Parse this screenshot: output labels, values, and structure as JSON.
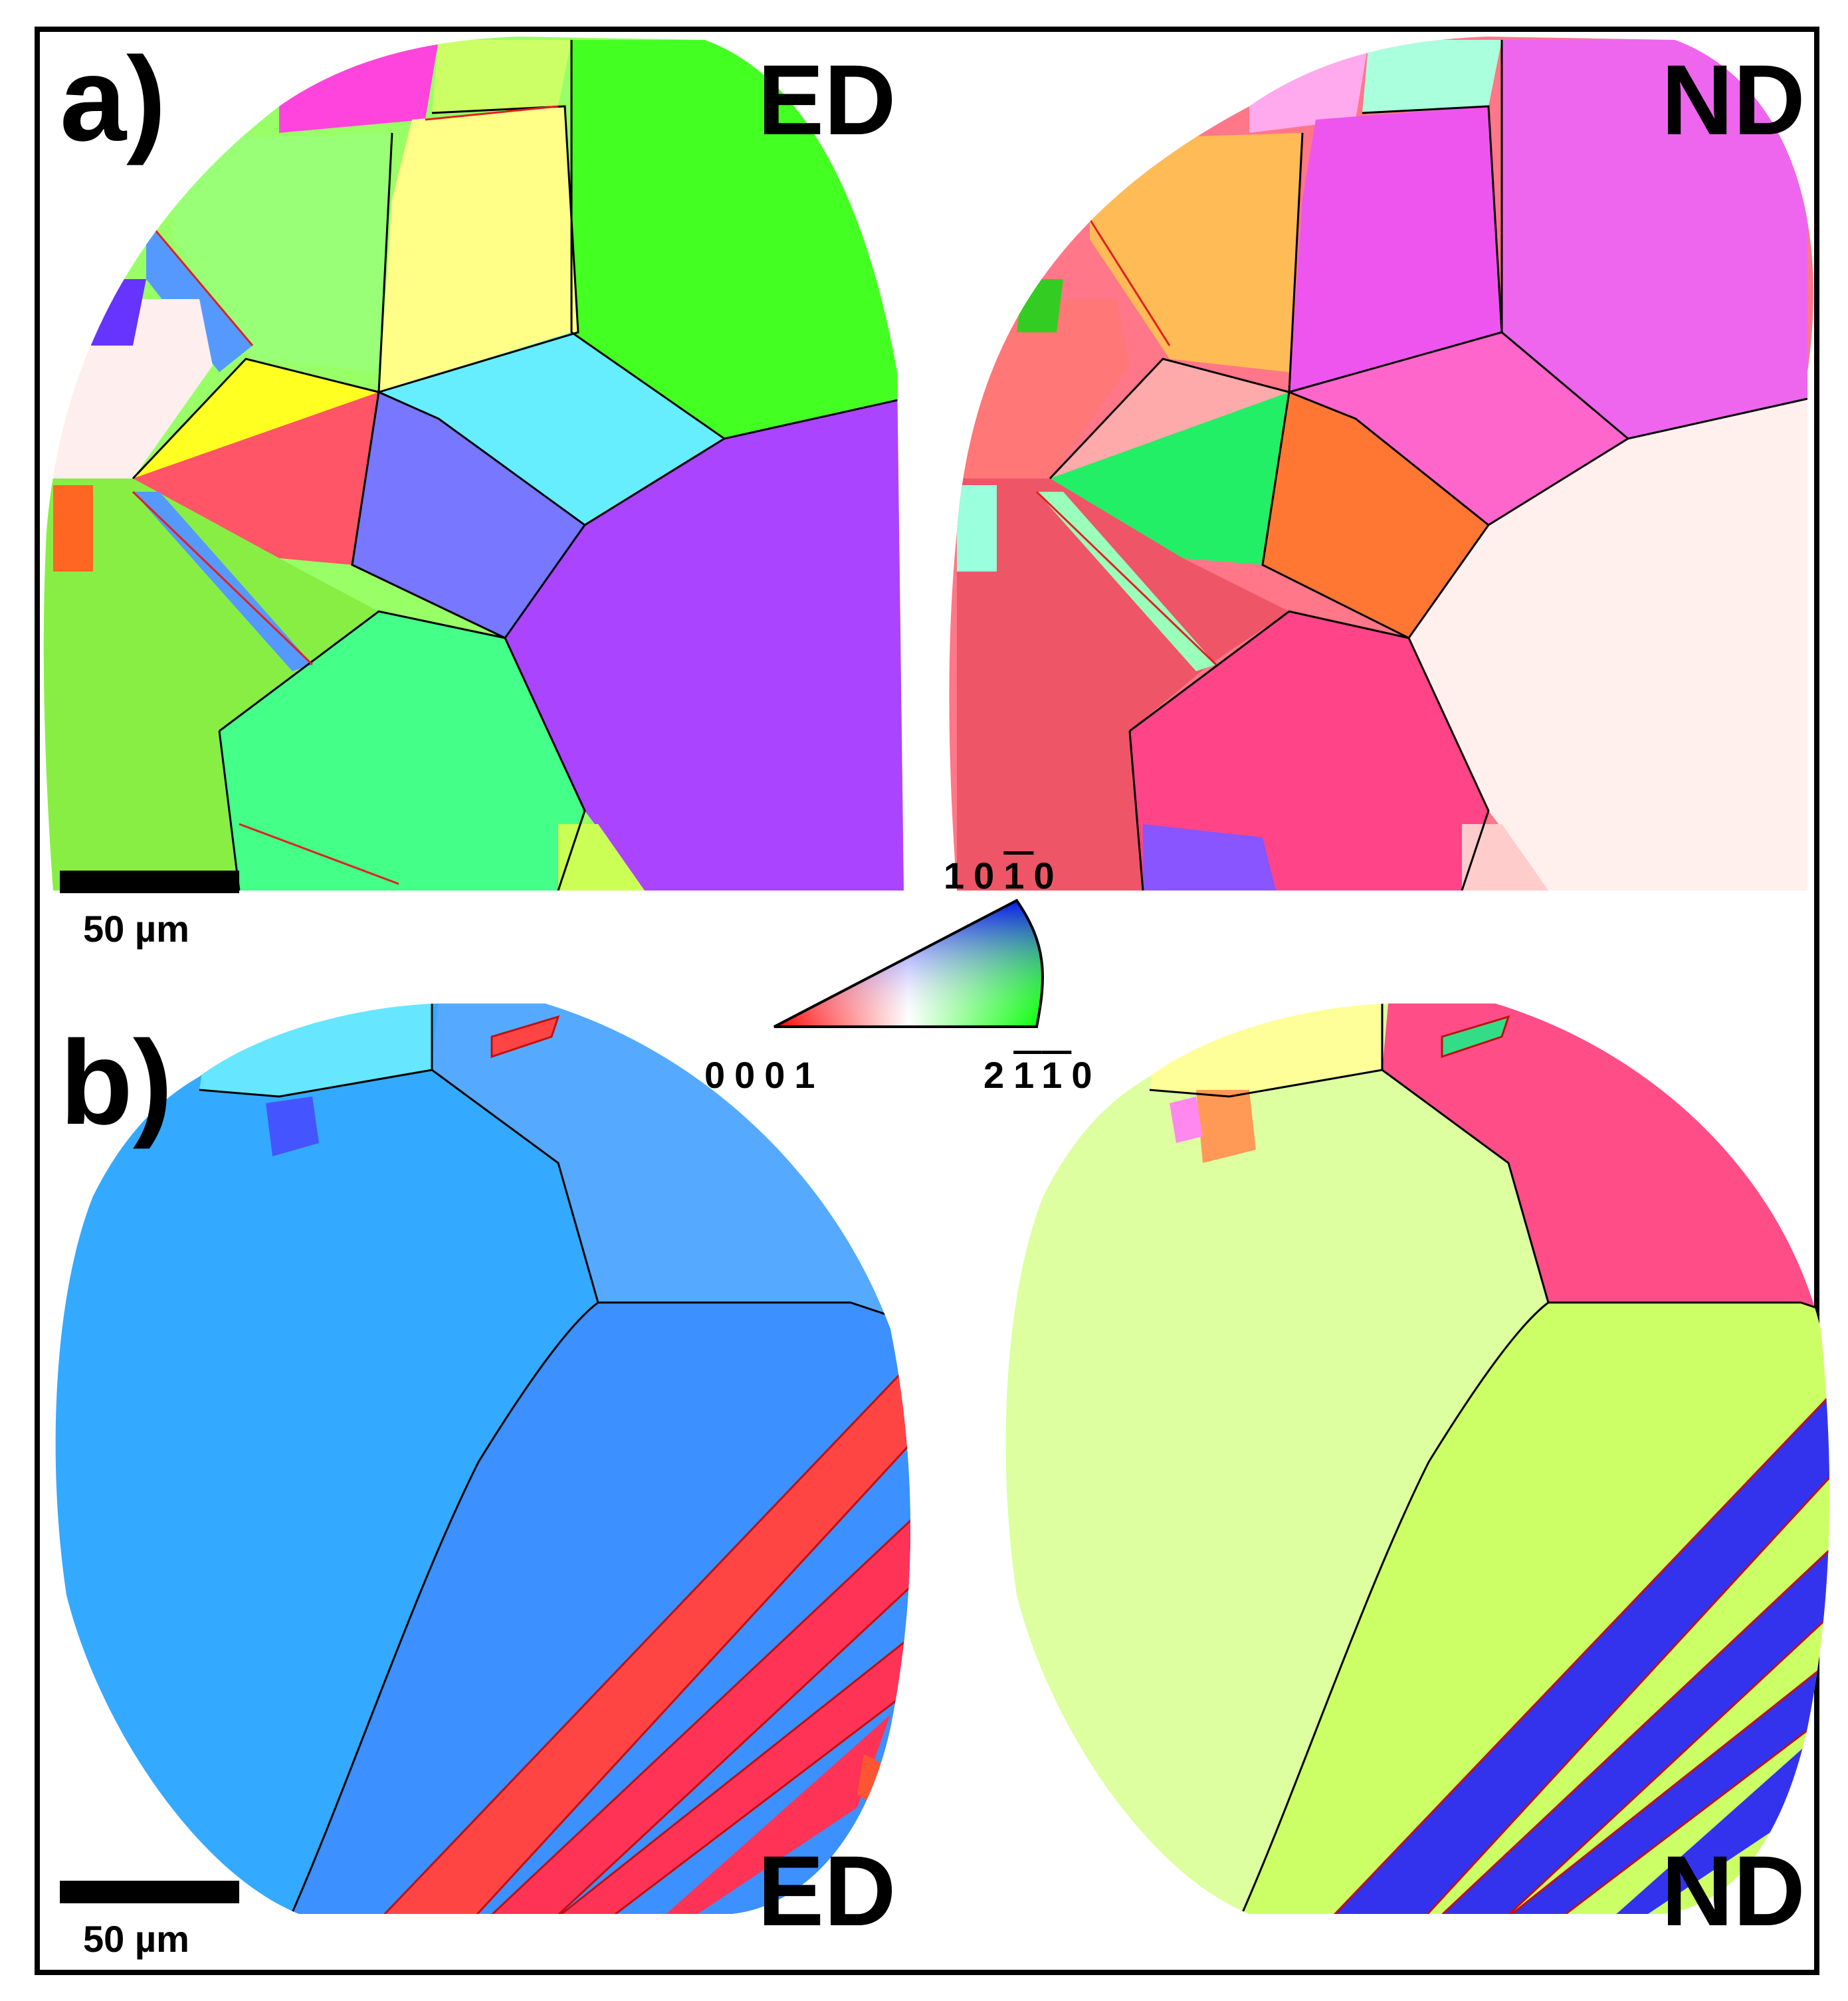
{
  "panels": {
    "a": {
      "label": "a)",
      "left_direction": "ED",
      "right_direction": "ND"
    },
    "b": {
      "label": "b)",
      "left_direction": "ED",
      "right_direction": "ND"
    }
  },
  "scale_bar": {
    "text_a": "50 µm",
    "text_b": "50 µm"
  },
  "ipf_key": {
    "corner_basal": "0001",
    "corner_prism1_pre": "10",
    "corner_prism1_bar": "1",
    "corner_prism1_post": "0",
    "corner_prism2_pre": "2",
    "corner_prism2_bar1": "1",
    "corner_prism2_bar2": "1",
    "corner_prism2_post": "0",
    "colors": {
      "basal": "#ff0000",
      "prism1": "#0000ff",
      "prism2": "#00ff00"
    }
  },
  "icons": {
    "maps": "ebsd-orientation-map",
    "key": "ipf-color-triangle"
  }
}
